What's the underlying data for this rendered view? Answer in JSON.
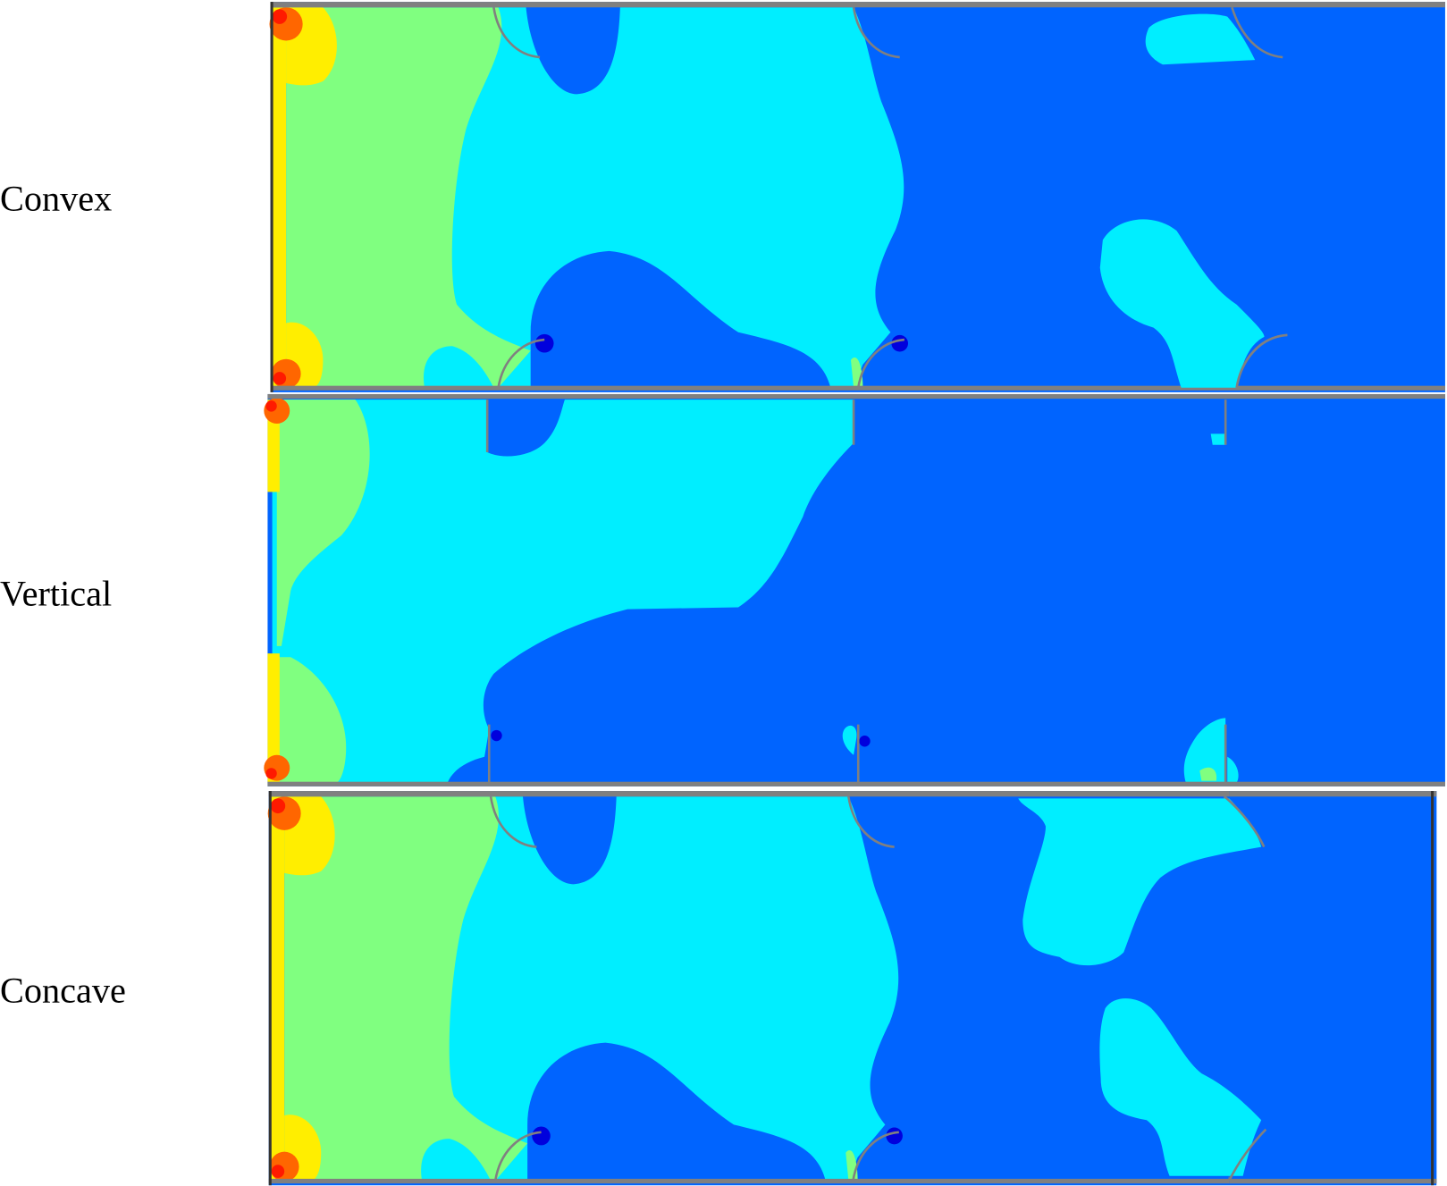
{
  "panels": [
    {
      "label": "Convex"
    },
    {
      "label": "Vertical"
    },
    {
      "label": "Concave"
    }
  ],
  "colors": {
    "deep_blue": "#0000dd",
    "blue": "#0064ff",
    "cyan": "#00eeff",
    "green": "#80ff80",
    "yellow": "#ffee00",
    "orange": "#ff6600",
    "red": "#ff1a00",
    "wall": "#808080"
  }
}
